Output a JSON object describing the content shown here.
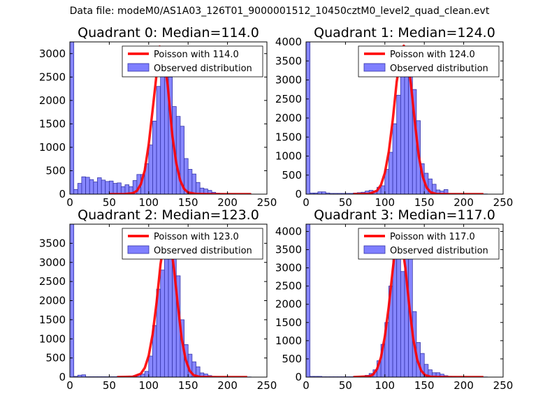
{
  "suptitle": "Data file: modeM0/AS1A03_126T01_9000001512_10450cztM0_level2_quad_clean.evt",
  "colors": {
    "poisson": "#ff0000",
    "bars": "#7f7fff",
    "bar_edge": "#3434a8"
  },
  "chart_data": [
    {
      "type": "bar",
      "title": "Quadrant 0: Median=114.0",
      "bin_width": 5,
      "xlim": [
        0,
        250
      ],
      "ylim": [
        0,
        3250
      ],
      "xticks": [
        0,
        50,
        100,
        150,
        200,
        250
      ],
      "yticks": [
        0,
        500,
        1000,
        1500,
        2000,
        2500,
        3000
      ],
      "legend": {
        "position": "top-right",
        "entries": [
          "Poisson with 114.0",
          "Observed distribution"
        ]
      },
      "observed": {
        "name": "Observed distribution",
        "bin_starts": [
          0,
          5,
          10,
          15,
          20,
          25,
          30,
          35,
          40,
          45,
          50,
          55,
          60,
          65,
          70,
          75,
          80,
          85,
          90,
          95,
          100,
          105,
          110,
          115,
          120,
          125,
          130,
          135,
          140,
          145,
          150,
          155,
          160,
          165,
          170,
          175,
          180,
          185,
          190,
          195,
          200,
          205,
          210,
          215,
          220,
          225
        ],
        "values": [
          3250,
          100,
          230,
          370,
          360,
          310,
          260,
          350,
          300,
          270,
          280,
          230,
          240,
          160,
          200,
          160,
          290,
          420,
          420,
          650,
          1050,
          1560,
          2300,
          3150,
          2680,
          2500,
          1870,
          1660,
          1450,
          760,
          530,
          430,
          250,
          130,
          110,
          80,
          40,
          20,
          10,
          5,
          5,
          5,
          0,
          0,
          0,
          5
        ]
      },
      "poisson": {
        "name": "Poisson with 114.0",
        "x": [
          50,
          60,
          70,
          80,
          85,
          90,
          95,
          100,
          105,
          110,
          114,
          118,
          124,
          130,
          135,
          140,
          145,
          150,
          160,
          175,
          200,
          230
        ],
        "y": [
          0,
          0,
          2,
          20,
          70,
          210,
          510,
          1060,
          1800,
          2560,
          3150,
          2990,
          2350,
          1250,
          660,
          290,
          110,
          35,
          5,
          0,
          0,
          0
        ]
      }
    },
    {
      "type": "bar",
      "title": "Quadrant 1: Median=124.0",
      "bin_width": 5,
      "xlim": [
        0,
        250
      ],
      "ylim": [
        0,
        4000
      ],
      "xticks": [
        0,
        50,
        100,
        150,
        200,
        250
      ],
      "yticks": [
        0,
        500,
        1000,
        1500,
        2000,
        2500,
        3000,
        3500,
        4000
      ],
      "legend": {
        "position": "top-right",
        "entries": [
          "Poisson with 124.0",
          "Observed distribution"
        ]
      },
      "observed": {
        "name": "Observed distribution",
        "bin_starts": [
          0,
          5,
          10,
          15,
          20,
          25,
          30,
          35,
          40,
          45,
          50,
          55,
          60,
          65,
          70,
          75,
          80,
          85,
          90,
          95,
          100,
          105,
          110,
          115,
          120,
          125,
          130,
          135,
          140,
          145,
          150,
          155,
          160,
          165,
          170,
          175,
          180,
          185,
          190,
          195,
          200,
          205,
          210,
          215,
          220,
          225
        ],
        "values": [
          4000,
          30,
          30,
          60,
          60,
          30,
          20,
          20,
          20,
          20,
          20,
          20,
          30,
          40,
          50,
          80,
          100,
          80,
          180,
          220,
          650,
          1100,
          1850,
          2600,
          3350,
          3850,
          3500,
          2750,
          1930,
          800,
          550,
          400,
          260,
          110,
          80,
          120,
          10,
          10,
          5,
          5,
          0,
          0,
          0,
          0,
          0,
          5
        ]
      },
      "poisson": {
        "name": "Poisson with 124.0",
        "x": [
          60,
          80,
          90,
          95,
          100,
          105,
          110,
          115,
          119,
          124,
          128,
          133,
          138,
          143,
          148,
          153,
          158,
          165,
          180,
          225
        ],
        "y": [
          0,
          10,
          90,
          240,
          560,
          1120,
          1950,
          2950,
          3500,
          3900,
          3650,
          2900,
          1900,
          1000,
          460,
          170,
          50,
          5,
          0,
          0
        ]
      }
    },
    {
      "type": "bar",
      "title": "Quadrant 2: Median=123.0",
      "bin_width": 5,
      "xlim": [
        0,
        250
      ],
      "ylim": [
        0,
        4000
      ],
      "xticks": [
        0,
        50,
        100,
        150,
        200,
        250
      ],
      "yticks": [
        0,
        500,
        1000,
        1500,
        2000,
        2500,
        3000,
        3500
      ],
      "legend": {
        "position": "top-right",
        "entries": [
          "Poisson with 123.0",
          "Observed distribution"
        ]
      },
      "observed": {
        "name": "Observed distribution",
        "bin_starts": [
          0,
          5,
          10,
          15,
          20,
          25,
          30,
          35,
          40,
          45,
          50,
          55,
          60,
          65,
          70,
          75,
          80,
          85,
          90,
          95,
          100,
          105,
          110,
          115,
          120,
          125,
          130,
          135,
          140,
          145,
          150,
          155,
          160,
          165,
          170,
          175,
          180,
          185,
          190,
          195,
          200,
          205,
          210,
          215,
          220,
          225
        ],
        "values": [
          4000,
          20,
          50,
          60,
          10,
          10,
          10,
          10,
          10,
          10,
          10,
          10,
          20,
          20,
          20,
          30,
          40,
          60,
          80,
          150,
          550,
          1350,
          2300,
          2800,
          3700,
          3750,
          3500,
          2650,
          1500,
          850,
          600,
          400,
          270,
          110,
          80,
          40,
          20,
          10,
          5,
          5,
          0,
          0,
          0,
          0,
          0,
          5
        ]
      },
      "poisson": {
        "name": "Poisson with 123.0",
        "x": [
          60,
          80,
          90,
          95,
          100,
          105,
          110,
          115,
          119,
          123,
          127,
          132,
          137,
          142,
          147,
          152,
          157,
          165,
          180,
          225
        ],
        "y": [
          0,
          10,
          90,
          240,
          560,
          1120,
          1950,
          2950,
          3500,
          3850,
          3600,
          2850,
          1880,
          990,
          450,
          165,
          50,
          5,
          0,
          0
        ]
      }
    },
    {
      "type": "bar",
      "title": "Quadrant 3: Median=117.0",
      "bin_width": 5,
      "xlim": [
        0,
        250
      ],
      "ylim": [
        0,
        4200
      ],
      "xticks": [
        0,
        50,
        100,
        150,
        200,
        250
      ],
      "yticks": [
        0,
        500,
        1000,
        1500,
        2000,
        2500,
        3000,
        3500,
        4000
      ],
      "legend": {
        "position": "top-right",
        "entries": [
          "Poisson with 117.0",
          "Observed distribution"
        ]
      },
      "observed": {
        "name": "Observed distribution",
        "bin_starts": [
          0,
          5,
          10,
          15,
          20,
          25,
          30,
          35,
          40,
          45,
          50,
          55,
          60,
          65,
          70,
          75,
          80,
          85,
          90,
          95,
          100,
          105,
          110,
          115,
          120,
          125,
          130,
          135,
          140,
          145,
          150,
          155,
          160,
          165,
          170,
          175,
          180,
          185,
          190,
          195,
          200,
          205,
          210,
          215,
          220,
          225
        ],
        "values": [
          4200,
          20,
          20,
          20,
          10,
          10,
          10,
          10,
          10,
          10,
          10,
          10,
          20,
          20,
          30,
          50,
          100,
          200,
          450,
          900,
          1500,
          2500,
          3600,
          4000,
          2900,
          3300,
          3600,
          1800,
          950,
          650,
          350,
          200,
          120,
          120,
          80,
          40,
          20,
          10,
          5,
          5,
          0,
          0,
          0,
          0,
          0,
          5
        ]
      },
      "poisson": {
        "name": "Poisson with 117.0",
        "x": [
          60,
          80,
          85,
          90,
          95,
          100,
          105,
          110,
          114,
          117,
          121,
          126,
          131,
          136,
          141,
          146,
          151,
          158,
          175,
          225
        ],
        "y": [
          0,
          20,
          70,
          220,
          540,
          1120,
          1950,
          2950,
          3700,
          4000,
          3750,
          3000,
          1950,
          1050,
          480,
          180,
          55,
          10,
          0,
          0
        ]
      }
    }
  ]
}
